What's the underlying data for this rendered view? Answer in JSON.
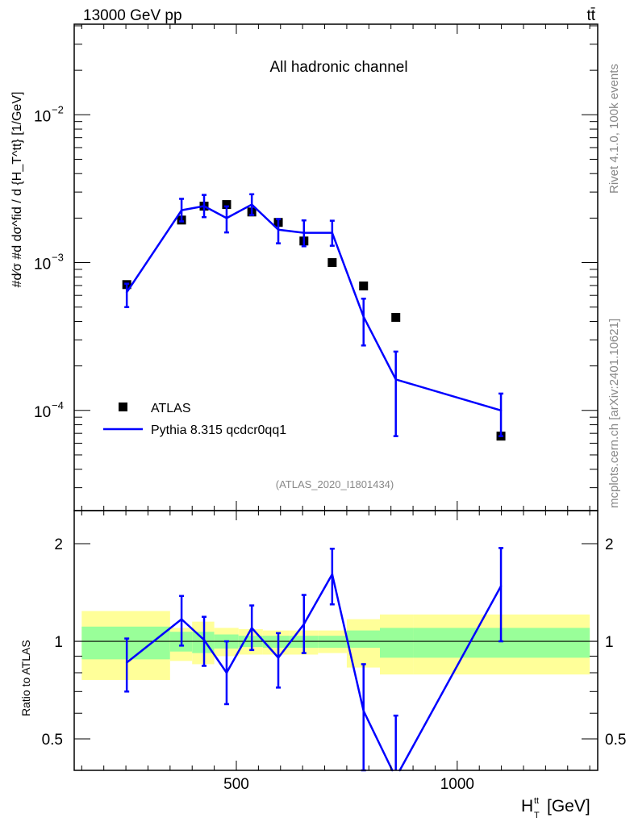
{
  "header": {
    "energy_label": "13000 GeV pp",
    "process_label": "tt̄"
  },
  "side_labels": {
    "rivet": "Rivet 4.1.0,  100k events",
    "mcplots": "mcplots.cern.ch [arXiv:2401.10621]"
  },
  "colors": {
    "data": "#000000",
    "mc": "#0000ff",
    "band_total": "#ffff99",
    "band_stat": "#99ff99"
  },
  "chart_data": [
    {
      "type": "scatter",
      "title": "All hadronic channel",
      "analysis_label": "(ATLAS_2020_I1801434)",
      "ylabel": "#d⁄σ #d dσ^fid / d {H_T^tt} [1/GeV]",
      "ylabel_parts": {
        "prefix": "#d",
        "frac1_num": "1",
        "frac1_den": "σ",
        "mid": "#d",
        "frac2_num": "dσ",
        "frac2_sup": "fid",
        "frac2_den": "d {H",
        "frac2_den_sup": "tt",
        "frac2_den_sub": "T",
        "frac2_den_close": "}",
        "unit": "[1/GeV]"
      },
      "xlabel": "H_T^tt [GeV]",
      "xlim": [
        133,
        1318
      ],
      "ylim": [
        2.1e-05,
        0.041
      ],
      "yscale": "log",
      "ytick_labels": [
        {
          "value": 0.01,
          "base": "10",
          "exp": "−2"
        },
        {
          "value": 0.001,
          "base": "10",
          "exp": "−3"
        },
        {
          "value": 0.0001,
          "base": "10",
          "exp": "−4"
        }
      ],
      "legend": {
        "position": "bottom-left",
        "entries": [
          "ATLAS",
          "Pythia 8.315 qcdcr0qq1"
        ]
      },
      "bin_edges": [
        150,
        350,
        400,
        450,
        505,
        560,
        620,
        685,
        750,
        825,
        900,
        1300
      ],
      "x": [
        252,
        376,
        427,
        478,
        535,
        595,
        653,
        717,
        788,
        861,
        1099
      ],
      "series": [
        {
          "name": "ATLAS",
          "values": [
            0.00071,
            0.00194,
            0.00241,
            0.00247,
            0.0022,
            0.00187,
            0.0014,
            0.001,
            0.000695,
            0.000426,
            6.7e-05
          ]
        },
        {
          "name": "Pythia 8.315 qcdcr0qq1",
          "values": [
            0.00063,
            0.00226,
            0.00241,
            0.002,
            0.00247,
            0.00167,
            0.00159,
            0.00159,
            0.00043,
            0.000162,
            0.0001
          ],
          "err_low": [
            0.0005,
            0.0019,
            0.00203,
            0.0016,
            0.0021,
            0.00135,
            0.00129,
            0.0013,
            0.000275,
            6.7e-05,
            6.7e-05
          ],
          "err_high": [
            0.00072,
            0.0027,
            0.00287,
            0.0024,
            0.0029,
            0.00197,
            0.00193,
            0.00192,
            0.00057,
            0.00025,
            0.00013
          ]
        }
      ]
    },
    {
      "type": "line",
      "ylabel": "Ratio to ATLAS",
      "xlabel": "H_T^tt [GeV]",
      "xlim": [
        133,
        1318
      ],
      "ylim": [
        0.4,
        2.53
      ],
      "yscale": "log",
      "ytick_labels": [
        {
          "value": 0.5,
          "label": "0.5"
        },
        {
          "value": 1,
          "label": "1"
        },
        {
          "value": 2,
          "label": "2"
        }
      ],
      "xtick_labels": [
        {
          "value": 500,
          "label": "500"
        },
        {
          "value": 1000,
          "label": "1000"
        }
      ],
      "bin_edges": [
        150,
        350,
        400,
        450,
        505,
        560,
        620,
        685,
        750,
        825,
        900,
        1300
      ],
      "band_total": {
        "low": [
          0.76,
          0.87,
          0.85,
          0.9,
          0.91,
          0.91,
          0.91,
          0.92,
          0.83,
          0.79,
          0.79
        ],
        "high": [
          1.24,
          1.1,
          1.15,
          1.1,
          1.09,
          1.08,
          1.08,
          1.08,
          1.17,
          1.21,
          1.21
        ]
      },
      "band_stat": {
        "low": [
          0.88,
          0.93,
          0.92,
          0.95,
          0.96,
          0.955,
          0.955,
          0.955,
          0.955,
          0.89,
          0.89
        ],
        "high": [
          1.11,
          1.07,
          1.07,
          1.05,
          1.04,
          1.04,
          1.04,
          1.04,
          1.08,
          1.1,
          1.1
        ]
      },
      "x": [
        252,
        376,
        427,
        478,
        535,
        595,
        653,
        717,
        788,
        861,
        1099
      ],
      "series": [
        {
          "name": "Pythia 8.315 qcdcr0qq1 / ATLAS",
          "values": [
            0.86,
            1.17,
            1.01,
            0.8,
            1.1,
            0.89,
            1.13,
            1.61,
            0.61,
            0.38,
            1.48
          ],
          "err_low": [
            0.7,
            0.97,
            0.84,
            0.64,
            0.94,
            0.72,
            0.92,
            1.3,
            0.4,
            0.16,
            1.0
          ],
          "err_high": [
            1.02,
            1.38,
            1.19,
            1.0,
            1.29,
            1.06,
            1.39,
            1.93,
            0.85,
            0.59,
            1.94
          ]
        }
      ]
    }
  ]
}
